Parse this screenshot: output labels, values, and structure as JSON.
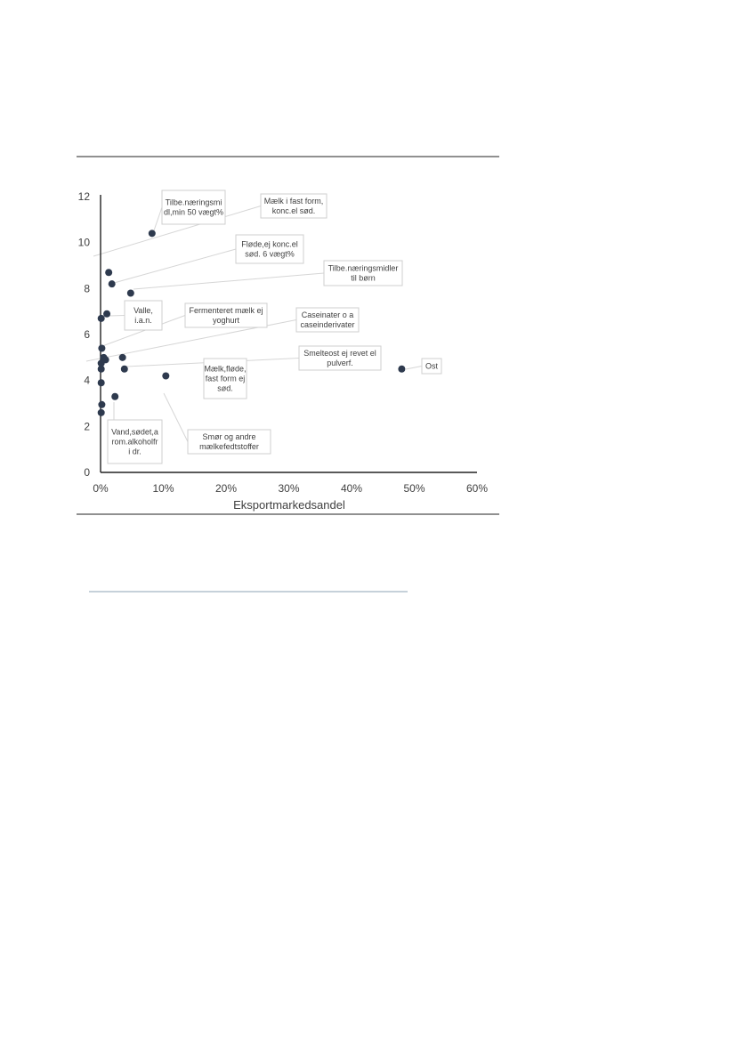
{
  "chart_data": {
    "type": "scatter",
    "xlabel": "Eksportmarkedsandel",
    "ylabel": "",
    "xlim": [
      0,
      60
    ],
    "ylim": [
      0,
      12
    ],
    "x_unit": "%",
    "x_ticks": [
      "0%",
      "10%",
      "20%",
      "30%",
      "40%",
      "50%",
      "60%"
    ],
    "y_ticks": [
      "0",
      "2",
      "4",
      "6",
      "8",
      "10",
      "12"
    ],
    "grid": false,
    "marker_color": "#2e3a4e",
    "points": [
      {
        "x": 8.2,
        "y": 10.4,
        "label": [
          "Tilbe.næringsmi",
          "dl,min 50 vægt%"
        ]
      },
      {
        "x": 1.3,
        "y": 8.7,
        "label": [
          "Mælk i fast form,",
          "konc.el sød."
        ]
      },
      {
        "x": 1.8,
        "y": 8.2,
        "label": [
          "Fløde,ej konc.el",
          "sød. 6 vægt%"
        ]
      },
      {
        "x": 4.8,
        "y": 7.8,
        "label": [
          "Tilbe.næringsmidler",
          "til børn"
        ]
      },
      {
        "x": 1.0,
        "y": 6.9,
        "label": [
          "Valle,",
          "i.a.n."
        ]
      },
      {
        "x": 0.1,
        "y": 6.7,
        "label": []
      },
      {
        "x": 0.2,
        "y": 5.4,
        "label": [
          "Fermenteret mælk ej",
          "yoghurt"
        ]
      },
      {
        "x": 0.5,
        "y": 5.0,
        "label": [
          "Caseinater o a",
          "caseinderivater"
        ]
      },
      {
        "x": 0.8,
        "y": 4.9,
        "label": []
      },
      {
        "x": 3.5,
        "y": 5.0,
        "label": []
      },
      {
        "x": 0.1,
        "y": 4.75,
        "label": []
      },
      {
        "x": 0.1,
        "y": 4.5,
        "label": []
      },
      {
        "x": 3.8,
        "y": 4.5,
        "label": [
          "Smelteost ej revet el",
          "pulverf."
        ]
      },
      {
        "x": 48.0,
        "y": 4.5,
        "label": [
          "Ost"
        ]
      },
      {
        "x": 10.4,
        "y": 4.2,
        "label": [
          "Mælk,fløde,",
          "fast form ej",
          "sød."
        ]
      },
      {
        "x": 0.1,
        "y": 3.9,
        "label": []
      },
      {
        "x": 2.3,
        "y": 3.3,
        "label": [
          "Smør og andre",
          "mælkefedtstoffer"
        ]
      },
      {
        "x": 0.2,
        "y": 2.95,
        "label": [
          "Vand,sødet,a",
          "rom.alkoholfr",
          "i dr."
        ]
      },
      {
        "x": 0.1,
        "y": 2.6,
        "label": []
      }
    ]
  }
}
